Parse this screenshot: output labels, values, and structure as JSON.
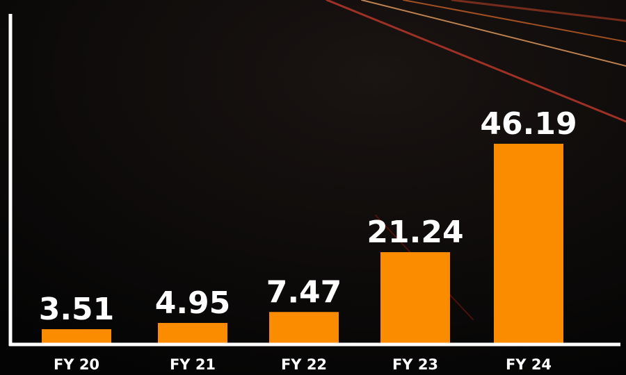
{
  "chart_data": {
    "type": "bar",
    "categories": [
      "FY 20",
      "FY 21",
      "FY 22",
      "FY 23",
      "FY 24"
    ],
    "values": [
      3.51,
      4.95,
      7.47,
      21.24,
      46.19
    ],
    "color": "#fb8c00"
  }
}
